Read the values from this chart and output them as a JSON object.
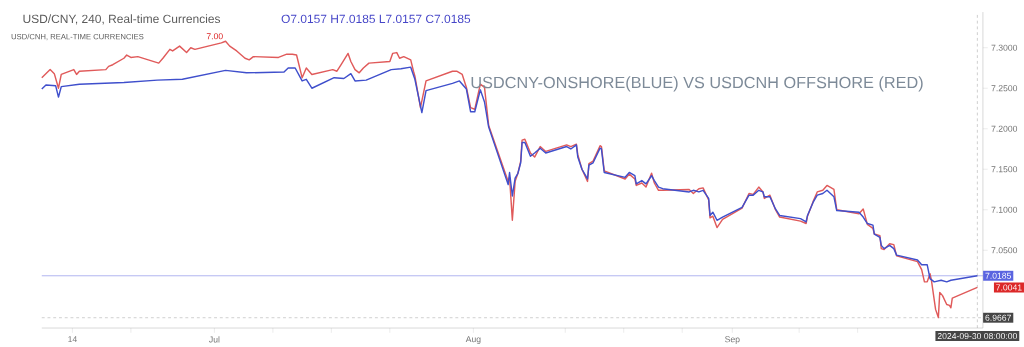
{
  "chart_data": {
    "type": "line",
    "title": "USD/CNY, 240, Real-time Currencies",
    "annotations": [
      "O7.0157 H7.0185 L7.0157 C7.0185",
      "USD/CNH, REAL-TIME CURRENCIES",
      "7.00",
      "USDCNY-ONSHORE(BLUE) VS USDCNH OFFSHORE (RED)",
      {
        "text": "7.0041",
        "x": "2024-09-30T08:00",
        "y": 7.0041
      }
    ],
    "series": [
      {
        "color": "#e05a5a",
        "x": [
          "2024-06-10T08:00",
          "2024-06-11T08:00",
          "2024-06-11T20:00",
          "2024-06-12T08:00",
          "2024-06-12T16:00",
          "2024-06-14T04:00",
          "2024-06-14T12:00",
          "2024-06-14T20:00",
          "2024-06-18T00:00",
          "2024-06-18T08:00",
          "2024-06-18T20:00",
          "2024-06-20T04:00",
          "2024-06-20T12:00",
          "2024-06-21T00:00",
          "2024-06-21T20:00",
          "2024-06-24T08:00",
          "2024-06-24T20:00",
          "2024-06-25T16:00",
          "2024-06-26T00:00",
          "2024-06-26T20:00",
          "2024-06-27T16:00",
          "2024-06-28T04:00",
          "2024-06-28T16:00",
          "2024-07-01T20:00",
          "2024-07-02T08:00",
          "2024-07-02T20:00",
          "2024-07-03T16:00",
          "2024-07-04T16:00",
          "2024-07-05T04:00",
          "2024-07-05T16:00",
          "2024-07-08T16:00",
          "2024-07-09T16:00",
          "2024-07-10T08:00",
          "2024-07-10T20:00",
          "2024-07-11T12:00",
          "2024-07-12T00:00",
          "2024-07-12T16:00",
          "2024-07-15T04:00",
          "2024-07-15T16:00",
          "2024-07-16T04:00",
          "2024-07-17T00:00",
          "2024-07-17T08:00",
          "2024-07-17T20:00",
          "2024-07-18T08:00",
          "2024-07-18T20:00",
          "2024-07-19T12:00",
          "2024-07-22T00:00",
          "2024-07-22T08:00",
          "2024-07-22T20:00",
          "2024-07-23T04:00",
          "2024-07-23T16:00",
          "2024-07-24T12:00",
          "2024-07-24T20:00",
          "2024-07-25T00:00",
          "2024-07-25T16:00",
          "2024-07-26T08:00",
          "2024-07-29T12:00",
          "2024-07-30T00:00",
          "2024-07-30T16:00",
          "2024-07-31T04:00",
          "2024-07-31T16:00",
          "2024-08-01T04:00",
          "2024-08-01T20:00",
          "2024-08-02T08:00",
          "2024-08-02T20:00",
          "2024-08-05T04:00",
          "2024-08-05T08:00",
          "2024-08-05T16:00",
          "2024-08-06T00:00",
          "2024-08-06T08:00",
          "2024-08-06T16:00",
          "2024-08-06T20:00",
          "2024-08-07T04:00",
          "2024-08-07T20:00",
          "2024-08-08T08:00",
          "2024-08-09T00:00",
          "2024-08-09T16:00",
          "2024-08-12T04:00",
          "2024-08-12T16:00",
          "2024-08-13T08:00",
          "2024-08-13T12:00",
          "2024-08-14T00:00",
          "2024-08-14T16:00",
          "2024-08-14T20:00",
          "2024-08-15T08:00",
          "2024-08-16T04:00",
          "2024-08-16T08:00",
          "2024-08-16T16:00",
          "2024-08-19T04:00",
          "2024-08-19T16:00",
          "2024-08-20T08:00",
          "2024-08-20T12:00",
          "2024-08-21T04:00",
          "2024-08-21T16:00",
          "2024-08-22T08:00",
          "2024-08-22T16:00",
          "2024-08-23T04:00",
          "2024-08-23T16:00",
          "2024-08-26T20:00",
          "2024-08-27T08:00",
          "2024-08-28T00:00",
          "2024-08-28T12:00",
          "2024-08-29T04:00",
          "2024-08-29T08:00",
          "2024-08-29T16:00",
          "2024-08-30T04:00",
          "2024-08-30T20:00",
          "2024-09-02T04:00",
          "2024-09-03T00:00",
          "2024-09-03T12:00",
          "2024-09-04T04:00",
          "2024-09-04T16:00",
          "2024-09-04T20:00",
          "2024-09-05T12:00",
          "2024-09-06T04:00",
          "2024-09-06T16:00",
          "2024-09-09T04:00",
          "2024-09-09T20:00",
          "2024-09-10T00:00",
          "2024-09-10T16:00",
          "2024-09-11T04:00",
          "2024-09-11T20:00",
          "2024-09-12T08:00",
          "2024-09-13T04:00",
          "2024-09-13T12:00",
          "2024-09-16T04:00",
          "2024-09-16T16:00",
          "2024-09-17T04:00",
          "2024-09-17T20:00",
          "2024-09-18T00:00",
          "2024-09-18T16:00",
          "2024-09-18T20:00",
          "2024-09-19T04:00",
          "2024-09-19T20:00",
          "2024-09-20T08:00",
          "2024-09-20T16:00",
          "2024-09-23T04:00",
          "2024-09-23T16:00",
          "2024-09-24T00:00",
          "2024-09-24T08:00",
          "2024-09-24T16:00",
          "2024-09-24T20:00",
          "2024-09-25T08:00",
          "2024-09-25T16:00",
          "2024-09-25T20:00",
          "2024-09-26T04:00",
          "2024-09-26T16:00",
          "2024-09-27T00:00",
          "2024-09-27T04:00",
          "2024-09-27T08:00",
          "2024-09-30T08:00"
        ],
        "values": [
          7.263,
          7.273,
          7.268,
          7.25,
          7.267,
          7.273,
          7.267,
          7.271,
          7.273,
          7.277,
          7.279,
          7.287,
          7.291,
          7.288,
          7.289,
          7.281,
          7.287,
          7.298,
          7.296,
          7.302,
          7.294,
          7.3,
          7.298,
          7.306,
          7.308,
          7.302,
          7.296,
          7.287,
          7.285,
          7.289,
          7.288,
          7.292,
          7.292,
          7.291,
          7.263,
          7.275,
          7.267,
          7.273,
          7.271,
          7.279,
          7.293,
          7.283,
          7.273,
          7.269,
          7.275,
          7.281,
          7.283,
          7.293,
          7.294,
          7.287,
          7.289,
          7.285,
          7.271,
          7.265,
          7.226,
          7.259,
          7.271,
          7.271,
          7.267,
          7.251,
          7.226,
          7.224,
          7.255,
          7.251,
          7.204,
          7.135,
          7.14,
          7.087,
          7.135,
          7.145,
          7.16,
          7.186,
          7.187,
          7.17,
          7.165,
          7.178,
          7.172,
          7.18,
          7.178,
          7.181,
          7.168,
          7.15,
          7.135,
          7.157,
          7.16,
          7.179,
          7.178,
          7.148,
          7.138,
          7.144,
          7.138,
          7.13,
          7.133,
          7.128,
          7.145,
          7.133,
          7.124,
          7.124,
          7.125,
          7.12,
          7.126,
          7.127,
          7.112,
          7.09,
          7.092,
          7.078,
          7.088,
          7.102,
          7.12,
          7.119,
          7.128,
          7.122,
          7.114,
          7.118,
          7.1,
          7.091,
          7.086,
          7.083,
          7.092,
          7.11,
          7.122,
          7.124,
          7.13,
          7.125,
          7.1,
          7.095,
          7.101,
          7.082,
          7.077,
          7.07,
          7.068,
          7.052,
          7.051,
          7.058,
          7.057,
          7.043,
          7.036,
          7.026,
          7.011,
          7.011,
          7.021,
          7.013,
          6.977,
          6.967,
          6.998,
          6.994,
          6.983,
          6.982,
          6.979,
          6.991,
          7.0041
        ]
      },
      {
        "color": "#3f4fcc",
        "x": [
          "2024-06-10T08:00",
          "2024-06-10T20:00",
          "2024-06-12T00:00",
          "2024-06-12T08:00",
          "2024-06-12T16:00",
          "2024-06-14T20:00",
          "2024-06-20T04:00",
          "2024-06-24T04:00",
          "2024-06-27T04:00",
          "2024-07-02T08:00",
          "2024-07-04T20:00",
          "2024-07-09T08:00",
          "2024-07-09T20:00",
          "2024-07-10T16:00",
          "2024-07-11T12:00",
          "2024-07-12T00:00",
          "2024-07-12T16:00",
          "2024-07-15T08:00",
          "2024-07-16T12:00",
          "2024-07-17T08:00",
          "2024-07-17T20:00",
          "2024-07-19T04:00",
          "2024-07-22T04:00",
          "2024-07-23T08:00",
          "2024-07-24T12:00",
          "2024-07-25T00:00",
          "2024-07-25T20:00",
          "2024-07-26T08:00",
          "2024-07-29T12:00",
          "2024-07-30T08:00",
          "2024-07-31T04:00",
          "2024-07-31T16:00",
          "2024-08-01T04:00",
          "2024-08-01T20:00",
          "2024-08-02T08:00",
          "2024-08-02T20:00",
          "2024-08-05T04:00",
          "2024-08-05T08:00",
          "2024-08-05T16:00",
          "2024-08-06T00:00",
          "2024-08-06T08:00",
          "2024-08-06T16:00",
          "2024-08-06T20:00",
          "2024-08-07T04:00",
          "2024-08-07T20:00",
          "2024-08-08T08:00",
          "2024-08-09T00:00",
          "2024-08-09T16:00",
          "2024-08-12T04:00",
          "2024-08-12T16:00",
          "2024-08-13T08:00",
          "2024-08-13T12:00",
          "2024-08-14T00:00",
          "2024-08-14T16:00",
          "2024-08-14T20:00",
          "2024-08-15T08:00",
          "2024-08-16T04:00",
          "2024-08-16T08:00",
          "2024-08-16T16:00",
          "2024-08-19T04:00",
          "2024-08-19T16:00",
          "2024-08-20T08:00",
          "2024-08-20T12:00",
          "2024-08-21T04:00",
          "2024-08-21T16:00",
          "2024-08-22T08:00",
          "2024-08-22T16:00",
          "2024-08-23T04:00",
          "2024-08-23T16:00",
          "2024-08-26T20:00",
          "2024-08-27T08:00",
          "2024-08-28T00:00",
          "2024-08-28T12:00",
          "2024-08-29T04:00",
          "2024-08-29T08:00",
          "2024-08-29T16:00",
          "2024-08-30T04:00",
          "2024-08-30T20:00",
          "2024-09-02T04:00",
          "2024-09-03T00:00",
          "2024-09-03T12:00",
          "2024-09-04T04:00",
          "2024-09-04T16:00",
          "2024-09-04T20:00",
          "2024-09-05T12:00",
          "2024-09-06T04:00",
          "2024-09-06T16:00",
          "2024-09-09T04:00",
          "2024-09-09T20:00",
          "2024-09-10T00:00",
          "2024-09-10T16:00",
          "2024-09-11T04:00",
          "2024-09-11T20:00",
          "2024-09-12T08:00",
          "2024-09-13T04:00",
          "2024-09-13T12:00",
          "2024-09-16T04:00",
          "2024-09-16T16:00",
          "2024-09-17T04:00",
          "2024-09-17T20:00",
          "2024-09-18T00:00",
          "2024-09-18T16:00",
          "2024-09-18T20:00",
          "2024-09-19T04:00",
          "2024-09-19T20:00",
          "2024-09-20T08:00",
          "2024-09-20T16:00",
          "2024-09-23T04:00",
          "2024-09-23T16:00",
          "2024-09-24T08:00",
          "2024-09-24T16:00",
          "2024-09-25T04:00",
          "2024-09-26T00:00",
          "2024-09-26T16:00",
          "2024-09-27T04:00",
          "2024-09-30T08:00"
        ],
        "values": [
          7.249,
          7.254,
          7.253,
          7.239,
          7.252,
          7.255,
          7.257,
          7.26,
          7.261,
          7.272,
          7.269,
          7.27,
          7.275,
          7.275,
          7.259,
          7.261,
          7.25,
          7.263,
          7.262,
          7.268,
          7.259,
          7.26,
          7.273,
          7.274,
          7.276,
          7.261,
          7.22,
          7.247,
          7.256,
          7.259,
          7.249,
          7.221,
          7.221,
          7.248,
          7.233,
          7.202,
          7.131,
          7.146,
          7.117,
          7.139,
          7.145,
          7.158,
          7.183,
          7.183,
          7.166,
          7.17,
          7.176,
          7.17,
          7.178,
          7.175,
          7.18,
          7.165,
          7.15,
          7.138,
          7.155,
          7.158,
          7.176,
          7.175,
          7.146,
          7.14,
          7.146,
          7.142,
          7.132,
          7.136,
          7.132,
          7.142,
          7.136,
          7.128,
          7.126,
          7.122,
          7.124,
          7.122,
          7.124,
          7.114,
          7.093,
          7.097,
          7.087,
          7.091,
          7.103,
          7.118,
          7.118,
          7.124,
          7.122,
          7.116,
          7.116,
          7.101,
          7.093,
          7.089,
          7.085,
          7.093,
          7.109,
          7.118,
          7.12,
          7.124,
          7.116,
          7.099,
          7.097,
          7.091,
          7.083,
          7.081,
          7.07,
          7.066,
          7.056,
          7.052,
          7.056,
          7.052,
          7.044,
          7.038,
          7.032,
          7.032,
          7.015,
          7.011,
          7.013,
          7.011,
          7.013,
          7.0185
        ]
      }
    ],
    "xlim": [
      "2024-06-10T08:00",
      "2024-10-01T00:00"
    ],
    "xticks": [
      {
        "value": "2024-06-14",
        "label": "14"
      },
      {
        "value": "2024-06-21",
        "label": null
      },
      {
        "value": "2024-07-01",
        "label": "Jul"
      },
      {
        "value": "2024-07-08",
        "label": null
      },
      {
        "value": "2024-07-15",
        "label": null
      },
      {
        "value": "2024-07-22",
        "label": null
      },
      {
        "value": "2024-08-01",
        "label": "Aug"
      },
      {
        "value": "2024-08-12",
        "label": null
      },
      {
        "value": "2024-08-19",
        "label": null
      },
      {
        "value": "2024-08-26",
        "label": null
      },
      {
        "value": "2024-09-01",
        "label": "Sep"
      },
      {
        "value": "2024-09-09",
        "label": null
      },
      {
        "value": "2024-09-16",
        "label": null
      }
    ],
    "ylim": [
      6.954,
      7.344
    ],
    "yticks": [
      {
        "value": 7.05,
        "label": "7.0500"
      },
      {
        "value": 7.1,
        "label": "7.1000"
      },
      {
        "value": 7.15,
        "label": "7.1500"
      },
      {
        "value": 7.2,
        "label": "7.2000"
      },
      {
        "value": 7.25,
        "label": "7.2500"
      },
      {
        "value": 7.3,
        "label": "7.3000"
      }
    ],
    "ref_lines": [
      {
        "axis": "y",
        "value": 7.0185,
        "label": "7.0185",
        "color": "#5a64e0",
        "line_style": "solid"
      },
      {
        "axis": "y",
        "value": 6.9667,
        "label": "6.9667",
        "color": "#9a9a9a",
        "line_style": "dashed"
      },
      {
        "axis": "x",
        "value": "2024-09-30T08:00",
        "label": "2024-09-30 08:00:00",
        "color": "#9a9a9a",
        "line_style": "dashed"
      }
    ],
    "grid": false,
    "marker": "none",
    "line_style": "solid"
  }
}
